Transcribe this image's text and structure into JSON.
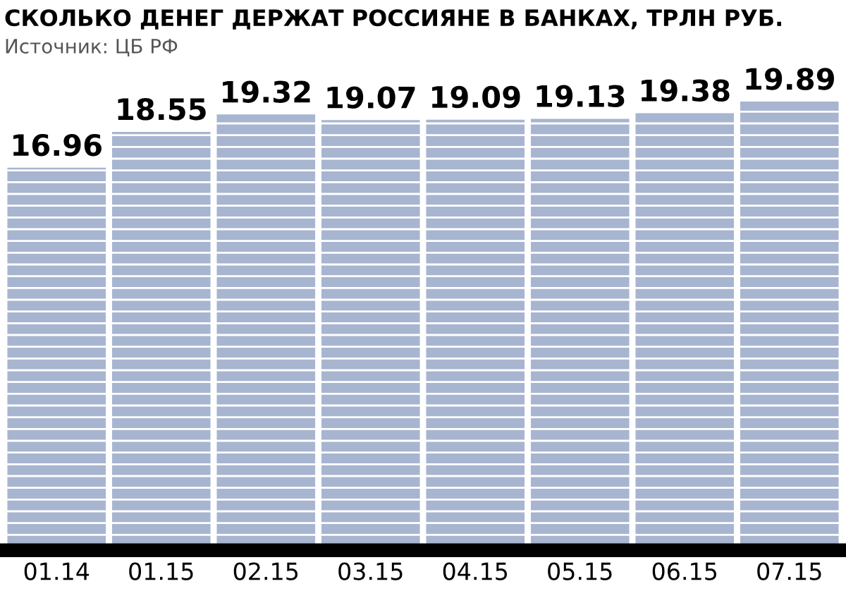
{
  "chart_data": {
    "type": "bar",
    "title": "СКОЛЬКО ДЕНЕГ ДЕРЖАТ РОССИЯНЕ В БАНКАХ, ТРЛН РУБ.",
    "annotations": [
      "Источник: ЦБ РФ"
    ],
    "categories": [
      "01.14",
      "01.15",
      "02.15",
      "03.15",
      "04.15",
      "05.15",
      "06.15",
      "07.15"
    ],
    "values": [
      16.96,
      18.55,
      19.32,
      19.07,
      19.09,
      19.13,
      19.38,
      19.89
    ],
    "color": "#a8b5d0",
    "tick_labels": "x",
    "data_labels": true,
    "grid": false,
    "legend": false
  }
}
